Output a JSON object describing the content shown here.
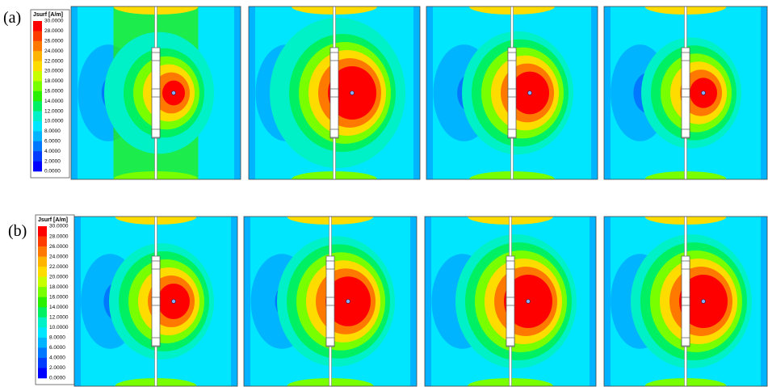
{
  "panels": [
    {
      "label": "(a)",
      "legend": {
        "title": "Jsurf [A/m]",
        "labels": [
          "30.0000",
          "28.0000",
          "26.0000",
          "24.0000",
          "22.0000",
          "20.0000",
          "18.0000",
          "16.0000",
          "14.0000",
          "12.0000",
          "10.0000",
          "8.0000",
          "6.0000",
          "4.0000",
          "2.0000",
          "0.0000"
        ],
        "colors": [
          "#ff0000",
          "#ff3c00",
          "#ff7800",
          "#ffb400",
          "#ffdc00",
          "#c8ff00",
          "#78ff00",
          "#28f000",
          "#00f064",
          "#00f0c8",
          "#00e6ff",
          "#00b4ff",
          "#0078ff",
          "#003cff",
          "#0000ff"
        ]
      }
    },
    {
      "label": "(b)",
      "legend": {
        "title": "Jsurf [A/m]",
        "labels": [
          "30.0000",
          "28.0000",
          "26.0000",
          "24.0000",
          "22.0000",
          "20.0000",
          "18.0000",
          "16.0000",
          "14.0000",
          "12.0000",
          "10.0000",
          "8.0000",
          "6.0000",
          "4.0000",
          "2.0000",
          "0.0000"
        ],
        "colors": [
          "#ff0000",
          "#ff3c00",
          "#ff7800",
          "#ffb400",
          "#ffdc00",
          "#c8ff00",
          "#78ff00",
          "#28f000",
          "#00f064",
          "#00f0c8",
          "#00e6ff",
          "#00b4ff",
          "#0078ff",
          "#003cff",
          "#0000ff"
        ]
      }
    }
  ]
}
